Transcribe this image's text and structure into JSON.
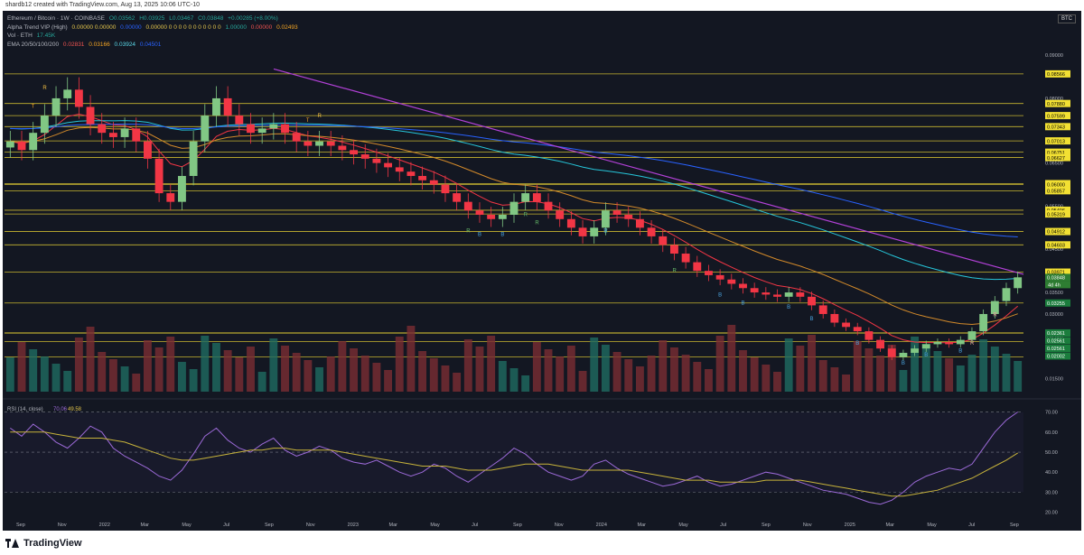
{
  "header": {
    "publish_line": "shardb12 created with TradingView.com, Aug 13, 2025 10:06 UTC-10"
  },
  "symbol_badge": "BTC",
  "legend": {
    "main": {
      "title": "Ethereum / Bitcoin · 1W · COINBASE",
      "open": "O0.03562",
      "high": "H0.03925",
      "low": "L0.03467",
      "close": "C0.03848",
      "change": "+0.00285 (+8.00%)"
    },
    "alpha": {
      "name": "Alpha Trend VIP (High)",
      "values_yellow": "0.00000  0.00000",
      "values_blue": "0.00000",
      "values_mid": "0.00000  0  0  0  0  0  0  0  0  0  0  0",
      "values_green": "1.00000",
      "values_red": "0.00000",
      "values_end": "0.02493"
    },
    "vol": {
      "name": "Vol · ETH",
      "value": "17.45K"
    },
    "ema": {
      "name": "EMA 20/50/100/200",
      "v20": "0.02831",
      "v50": "0.03166",
      "v100": "0.03924",
      "v200": "0.04501"
    }
  },
  "rsi_legend": {
    "name": "RSI (14, close)",
    "rsi": "70.06",
    "ma": "49.58"
  },
  "branding": {
    "name": "TradingView"
  },
  "colors": {
    "background": "#131722",
    "up": "#81c784",
    "down": "#f23645",
    "level_line": "#e8d233",
    "trendline": "#b341d8",
    "rsi_line": "#9c6ad8",
    "rsi_ma": "#c7b33b"
  },
  "chart_data": [
    {
      "type": "candlestick",
      "title": "Ethereum / Bitcoin · 1W · COINBASE",
      "x_ticks": [
        "Sep",
        "Nov",
        "2022",
        "Mar",
        "May",
        "Jul",
        "Sep",
        "Nov",
        "2023",
        "Mar",
        "May",
        "Jul",
        "Sep",
        "Nov",
        "2024",
        "Mar",
        "May",
        "Jul",
        "Sep",
        "Nov",
        "2025",
        "Mar",
        "May",
        "Jul",
        "Sep"
      ],
      "y_ticks": [
        "0.09000",
        "0.08000",
        "0.06500",
        "0.05500",
        "0.04500",
        "0.03500",
        "0.03000",
        "0.02500",
        "0.01500"
      ],
      "horizontal_levels": [
        "0.08566",
        "0.07880",
        "0.07599",
        "0.07343",
        "0.07013",
        "0.06751",
        "0.06627",
        "0.06022",
        "0.06000",
        "0.05857",
        "0.05406",
        "0.05319",
        "0.04912",
        "0.04603",
        "0.03971",
        "0.03255",
        "0.02561",
        "0.02361",
        "0.02561",
        "0.02561",
        "0.02002"
      ],
      "last_price_label": "0.03848",
      "countdown_label": "4d 4h",
      "signal_letters": [
        "T",
        "R",
        "T",
        "R",
        "R",
        "R",
        "R",
        "R",
        "R",
        "R",
        "R",
        "B",
        "B",
        "B",
        "B",
        "B",
        "B",
        "B",
        "B",
        "B",
        "B",
        "B"
      ],
      "closes_approx": [
        0.07,
        0.068,
        0.072,
        0.076,
        0.08,
        0.082,
        0.078,
        0.074,
        0.072,
        0.071,
        0.073,
        0.07,
        0.066,
        0.058,
        0.056,
        0.062,
        0.07,
        0.076,
        0.08,
        0.076,
        0.074,
        0.072,
        0.073,
        0.074,
        0.072,
        0.07,
        0.069,
        0.07,
        0.069,
        0.068,
        0.067,
        0.066,
        0.065,
        0.064,
        0.063,
        0.062,
        0.061,
        0.06,
        0.058,
        0.056,
        0.054,
        0.053,
        0.052,
        0.053,
        0.056,
        0.058,
        0.056,
        0.054,
        0.052,
        0.05,
        0.048,
        0.05,
        0.054,
        0.053,
        0.052,
        0.05,
        0.048,
        0.046,
        0.044,
        0.042,
        0.04,
        0.039,
        0.038,
        0.037,
        0.036,
        0.035,
        0.0345,
        0.034,
        0.035,
        0.034,
        0.032,
        0.03,
        0.028,
        0.027,
        0.026,
        0.024,
        0.022,
        0.02,
        0.021,
        0.022,
        0.023,
        0.0235,
        0.023,
        0.024,
        0.026,
        0.03,
        0.033,
        0.036,
        0.0385
      ]
    },
    {
      "type": "line",
      "title": "RSI (14, close)",
      "y_ticks": [
        "70.00",
        "60.00",
        "50.00",
        "40.00",
        "30.00",
        "20.00"
      ],
      "ylim": [
        18,
        73
      ],
      "series": [
        {
          "name": "RSI",
          "values": [
            62,
            58,
            64,
            60,
            55,
            52,
            57,
            63,
            60,
            52,
            48,
            45,
            42,
            38,
            36,
            41,
            49,
            58,
            62,
            56,
            52,
            50,
            54,
            57,
            51,
            48,
            50,
            53,
            51,
            47,
            45,
            44,
            46,
            43,
            40,
            38,
            40,
            44,
            42,
            38,
            35,
            39,
            43,
            47,
            52,
            49,
            44,
            40,
            38,
            36,
            38,
            44,
            46,
            42,
            39,
            37,
            35,
            33,
            34,
            36,
            38,
            35,
            33,
            34,
            36,
            38,
            40,
            39,
            37,
            35,
            33,
            31,
            30,
            29,
            27,
            25,
            24,
            26,
            30,
            35,
            38,
            40,
            42,
            41,
            44,
            52,
            60,
            66,
            70.06
          ]
        },
        {
          "name": "MA",
          "values": [
            60,
            60,
            60,
            60,
            59,
            58,
            57,
            57,
            57,
            56,
            55,
            53,
            51,
            49,
            47,
            46,
            46,
            47,
            48,
            49,
            50,
            51,
            51,
            52,
            52,
            51,
            51,
            51,
            51,
            50,
            49,
            48,
            47,
            46,
            45,
            44,
            43,
            43,
            43,
            42,
            41,
            41,
            41,
            42,
            43,
            44,
            44,
            44,
            43,
            42,
            41,
            41,
            41,
            41,
            41,
            40,
            39,
            38,
            37,
            36,
            36,
            36,
            35,
            35,
            35,
            35,
            36,
            36,
            36,
            36,
            35,
            34,
            33,
            32,
            31,
            30,
            29,
            28,
            28,
            29,
            30,
            31,
            33,
            35,
            37,
            40,
            43,
            46,
            49.58
          ]
        }
      ]
    }
  ]
}
